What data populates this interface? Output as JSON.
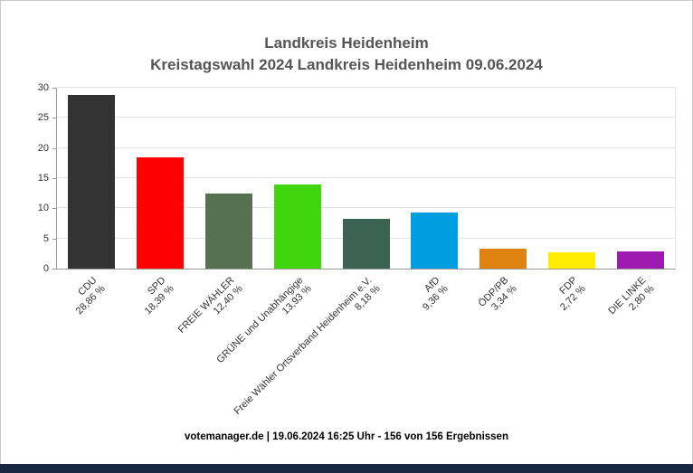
{
  "header": {
    "title_line1": "Landkreis Heidenheim",
    "title_line2": "Kreistagswahl 2024 Landkreis Heidenheim 09.06.2024"
  },
  "footer": {
    "text": "votemanager.de | 19.06.2024 16:25 Uhr - 156 von 156 Ergebnissen"
  },
  "colors": {
    "bottom_bar": "#1a2744",
    "title_text": "#555555",
    "axis": "#999999",
    "grid": "#e3e3e3"
  },
  "chart_data": {
    "type": "bar",
    "title": "Landkreis Heidenheim",
    "subtitle": "Kreistagswahl 2024 Landkreis Heidenheim 09.06.2024",
    "categories": [
      "CDU",
      "SPD",
      "FREIE WÄHLER",
      "GRÜNE und Unabhängige",
      "Freie Wähler Ortsverband Heidenheim e.V.",
      "AfD",
      "ÖDP/PB",
      "FDP",
      "DIE LINKE"
    ],
    "values": [
      28.86,
      18.39,
      12.4,
      13.93,
      8.18,
      9.36,
      3.34,
      2.72,
      2.8
    ],
    "value_labels": [
      "28,86 %",
      "18,39 %",
      "12,40 %",
      "13,93 %",
      "8,18 %",
      "9,36 %",
      "3,34 %",
      "2,72 %",
      "2,80 %"
    ],
    "colors": [
      "#333333",
      "#ff0000",
      "#567150",
      "#3fd60e",
      "#3b6253",
      "#009ee0",
      "#de810e",
      "#ffec00",
      "#9e1bb0"
    ],
    "xlabel": "",
    "ylabel": "",
    "ylim": [
      0,
      30
    ],
    "yticks": [
      0,
      5,
      10,
      15,
      20,
      25,
      30
    ],
    "grid": true,
    "legend": "none"
  }
}
